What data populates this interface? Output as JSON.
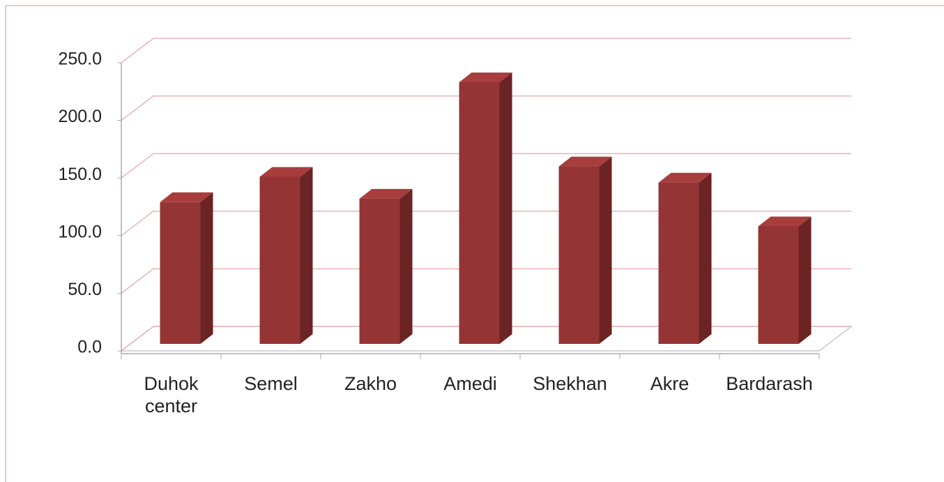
{
  "chart_data": {
    "type": "bar3d",
    "categories": [
      "Duhok center",
      "Semel",
      "Zakho",
      "Amedi",
      "Shekhan",
      "Akre",
      "Bardarash"
    ],
    "values": [
      123,
      145,
      126,
      227,
      154,
      140,
      102
    ],
    "color": "#943434",
    "ylim": [
      0,
      250
    ],
    "yticks": [
      {
        "value": 0,
        "label": "0.0"
      },
      {
        "value": 50,
        "label": "50.0"
      },
      {
        "value": 100,
        "label": "100.0"
      },
      {
        "value": 150,
        "label": "150.0"
      },
      {
        "value": 200,
        "label": "200.0"
      },
      {
        "value": 250,
        "label": "250.0"
      }
    ],
    "grid": true
  }
}
